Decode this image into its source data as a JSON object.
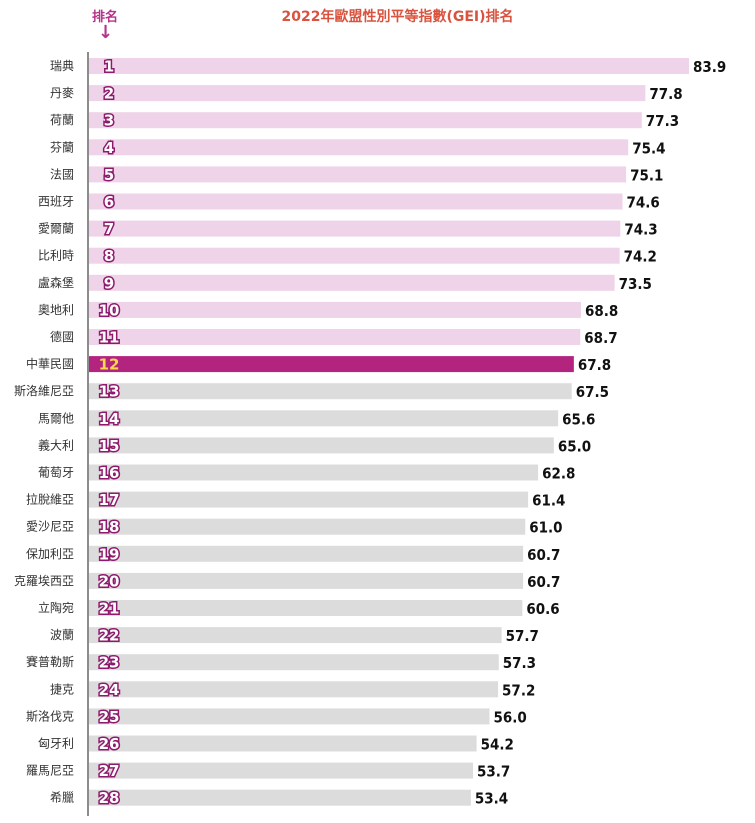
{
  "chart_data": {
    "type": "bar",
    "orientation": "horizontal",
    "title": "2022年歐盟性別平等指數(GEI)排名",
    "rank_header": "排名",
    "colors": {
      "top_group": "#efd3e8",
      "highlight": "#b3247f",
      "others": "#dcdcdc",
      "rank_stroke": "#8e1a6e",
      "title": "#d9533f"
    },
    "highlight_rank": 12,
    "top_group_count": 11,
    "xlim": [
      0,
      83.9
    ],
    "categories": [
      "瑞典",
      "丹麥",
      "荷蘭",
      "芬蘭",
      "法國",
      "西班牙",
      "愛爾蘭",
      "比利時",
      "盧森堡",
      "奧地利",
      "德國",
      "中華民國",
      "斯洛維尼亞",
      "馬爾他",
      "義大利",
      "葡萄牙",
      "拉脫維亞",
      "愛沙尼亞",
      "保加利亞",
      "克羅埃西亞",
      "立陶宛",
      "波蘭",
      "賽普勒斯",
      "捷克",
      "斯洛伐克",
      "匈牙利",
      "羅馬尼亞",
      "希臘"
    ],
    "ranks": [
      "1",
      "2",
      "3",
      "4",
      "5",
      "6",
      "7",
      "8",
      "9",
      "10",
      "11",
      "12",
      "13",
      "14",
      "15",
      "16",
      "17",
      "18",
      "19",
      "20",
      "21",
      "22",
      "23",
      "24",
      "25",
      "26",
      "27",
      "28"
    ],
    "values": [
      83.9,
      77.8,
      77.3,
      75.4,
      75.1,
      74.6,
      74.3,
      74.2,
      73.5,
      68.8,
      68.7,
      67.8,
      67.5,
      65.6,
      65.0,
      62.8,
      61.4,
      61.0,
      60.7,
      60.7,
      60.6,
      57.7,
      57.3,
      57.2,
      56.0,
      54.2,
      53.7,
      53.4
    ],
    "value_labels": [
      "83.9",
      "77.8",
      "77.3",
      "75.4",
      "75.1",
      "74.6",
      "74.3",
      "74.2",
      "73.5",
      "68.8",
      "68.7",
      "67.8",
      "67.5",
      "65.6",
      "65.0",
      "62.8",
      "61.4",
      "61.0",
      "60.7",
      "60.7",
      "60.6",
      "57.7",
      "57.3",
      "57.2",
      "56.0",
      "54.2",
      "53.7",
      "53.4"
    ]
  }
}
